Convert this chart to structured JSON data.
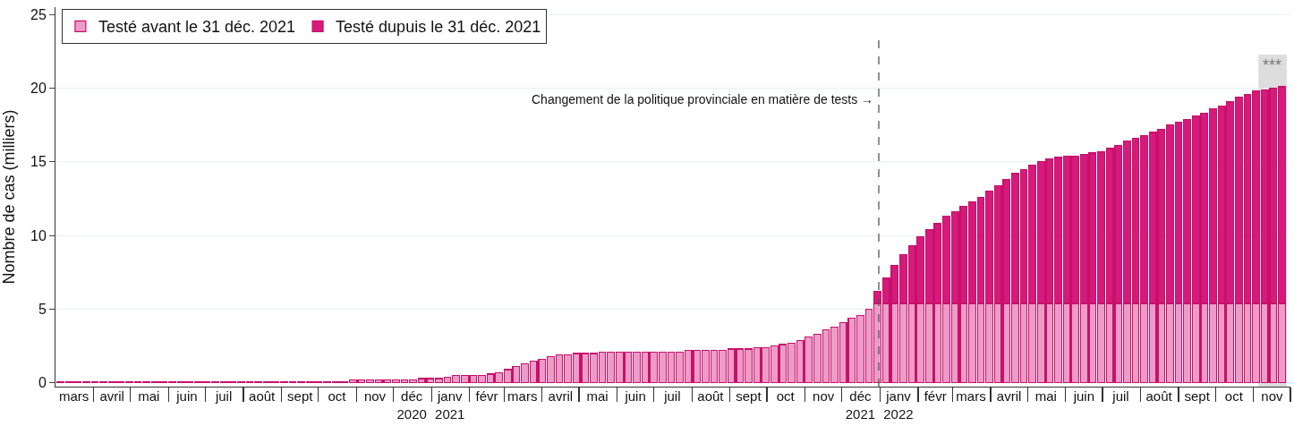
{
  "chart_data": {
    "type": "bar",
    "stacked": true,
    "ylabel": "Nombre de cas (milliers)",
    "x": [
      "2020-03-05",
      "2020-03-12",
      "2020-03-19",
      "2020-03-26",
      "2020-04-02",
      "2020-04-09",
      "2020-04-16",
      "2020-04-23",
      "2020-04-30",
      "2020-05-07",
      "2020-05-14",
      "2020-05-21",
      "2020-05-28",
      "2020-06-04",
      "2020-06-11",
      "2020-06-18",
      "2020-06-25",
      "2020-07-02",
      "2020-07-09",
      "2020-07-16",
      "2020-07-23",
      "2020-07-30",
      "2020-08-06",
      "2020-08-13",
      "2020-08-20",
      "2020-08-27",
      "2020-09-03",
      "2020-09-10",
      "2020-09-17",
      "2020-09-24",
      "2020-10-01",
      "2020-10-08",
      "2020-10-15",
      "2020-10-22",
      "2020-10-29",
      "2020-11-05",
      "2020-11-12",
      "2020-11-19",
      "2020-11-26",
      "2020-12-03",
      "2020-12-10",
      "2020-12-17",
      "2020-12-24",
      "2020-12-31",
      "2021-01-07",
      "2021-01-14",
      "2021-01-21",
      "2021-01-28",
      "2021-02-04",
      "2021-02-11",
      "2021-02-18",
      "2021-02-25",
      "2021-03-04",
      "2021-03-11",
      "2021-03-18",
      "2021-03-25",
      "2021-04-01",
      "2021-04-08",
      "2021-04-15",
      "2021-04-22",
      "2021-04-29",
      "2021-05-06",
      "2021-05-13",
      "2021-05-20",
      "2021-05-27",
      "2021-06-03",
      "2021-06-10",
      "2021-06-17",
      "2021-06-24",
      "2021-07-01",
      "2021-07-08",
      "2021-07-15",
      "2021-07-22",
      "2021-07-29",
      "2021-08-05",
      "2021-08-12",
      "2021-08-19",
      "2021-08-26",
      "2021-09-02",
      "2021-09-09",
      "2021-09-16",
      "2021-09-23",
      "2021-09-30",
      "2021-10-07",
      "2021-10-14",
      "2021-10-21",
      "2021-10-28",
      "2021-11-04",
      "2021-11-11",
      "2021-11-18",
      "2021-11-25",
      "2021-12-02",
      "2021-12-09",
      "2021-12-16",
      "2021-12-23",
      "2021-12-30",
      "2022-01-06",
      "2022-01-13",
      "2022-01-20",
      "2022-01-27",
      "2022-02-03",
      "2022-02-10",
      "2022-02-17",
      "2022-02-24",
      "2022-03-03",
      "2022-03-10",
      "2022-03-17",
      "2022-03-24",
      "2022-03-31",
      "2022-04-07",
      "2022-04-14",
      "2022-04-21",
      "2022-04-28",
      "2022-05-05",
      "2022-05-12",
      "2022-05-19",
      "2022-05-26",
      "2022-06-02",
      "2022-06-09",
      "2022-06-16",
      "2022-06-23",
      "2022-06-30",
      "2022-07-07",
      "2022-07-14",
      "2022-07-21",
      "2022-07-28",
      "2022-08-04",
      "2022-08-11",
      "2022-08-18",
      "2022-08-25",
      "2022-09-01",
      "2022-09-08",
      "2022-09-15",
      "2022-09-22",
      "2022-09-29",
      "2022-10-06",
      "2022-10-13",
      "2022-10-20",
      "2022-10-27",
      "2022-11-03",
      "2022-11-10",
      "2022-11-17",
      "2022-11-24"
    ],
    "series": [
      {
        "name": "Testé avant le 31 déc. 2021",
        "color": "#ec9cc7",
        "values": [
          0.1,
          0.1,
          0.1,
          0.1,
          0.1,
          0.1,
          0.1,
          0.1,
          0.1,
          0.1,
          0.1,
          0.1,
          0.1,
          0.1,
          0.1,
          0.1,
          0.1,
          0.1,
          0.1,
          0.1,
          0.1,
          0.1,
          0.1,
          0.1,
          0.1,
          0.1,
          0.1,
          0.1,
          0.1,
          0.1,
          0.1,
          0.1,
          0.1,
          0.1,
          0.2,
          0.2,
          0.2,
          0.2,
          0.2,
          0.2,
          0.2,
          0.2,
          0.3,
          0.3,
          0.3,
          0.4,
          0.5,
          0.5,
          0.5,
          0.5,
          0.6,
          0.7,
          0.9,
          1.1,
          1.3,
          1.5,
          1.6,
          1.8,
          1.9,
          1.9,
          2.0,
          2.0,
          2.0,
          2.1,
          2.1,
          2.1,
          2.1,
          2.1,
          2.1,
          2.1,
          2.1,
          2.1,
          2.1,
          2.2,
          2.2,
          2.2,
          2.2,
          2.2,
          2.3,
          2.3,
          2.3,
          2.4,
          2.4,
          2.5,
          2.6,
          2.7,
          2.9,
          3.1,
          3.3,
          3.6,
          3.8,
          4.1,
          4.4,
          4.6,
          5.0,
          5.4,
          5.4,
          5.4,
          5.4,
          5.4,
          5.4,
          5.4,
          5.4,
          5.4,
          5.4,
          5.4,
          5.4,
          5.4,
          5.4,
          5.4,
          5.4,
          5.4,
          5.4,
          5.4,
          5.4,
          5.4,
          5.4,
          5.4,
          5.4,
          5.4,
          5.4,
          5.4,
          5.4,
          5.4,
          5.4,
          5.4,
          5.4,
          5.4,
          5.4,
          5.4,
          5.4,
          5.4,
          5.4,
          5.4,
          5.4,
          5.4,
          5.4,
          5.4,
          5.4,
          5.4,
          5.4,
          5.4,
          5.4
        ]
      },
      {
        "name": "Testé dupuis le 31 déc. 2021",
        "color": "#d51a7b",
        "values": [
          null,
          null,
          null,
          null,
          null,
          null,
          null,
          null,
          null,
          null,
          null,
          null,
          null,
          null,
          null,
          null,
          null,
          null,
          null,
          null,
          null,
          null,
          null,
          null,
          null,
          null,
          null,
          null,
          null,
          null,
          null,
          null,
          null,
          null,
          null,
          null,
          null,
          null,
          null,
          null,
          null,
          null,
          null,
          null,
          null,
          null,
          null,
          null,
          null,
          null,
          null,
          null,
          null,
          null,
          null,
          null,
          null,
          null,
          null,
          null,
          null,
          null,
          null,
          null,
          null,
          null,
          null,
          null,
          null,
          null,
          null,
          null,
          null,
          null,
          null,
          null,
          null,
          null,
          null,
          null,
          null,
          null,
          null,
          null,
          null,
          null,
          null,
          null,
          null,
          null,
          null,
          null,
          null,
          null,
          null,
          0.8,
          1.7,
          2.6,
          3.3,
          3.9,
          4.5,
          5.0,
          5.4,
          5.9,
          6.2,
          6.6,
          6.9,
          7.2,
          7.6,
          8.0,
          8.4,
          8.8,
          9.1,
          9.4,
          9.6,
          9.8,
          9.9,
          10.0,
          10.0,
          10.1,
          10.2,
          10.3,
          10.5,
          10.7,
          11.0,
          11.2,
          11.4,
          11.6,
          11.8,
          12.1,
          12.3,
          12.5,
          12.7,
          12.9,
          13.2,
          13.4,
          13.7,
          14.0,
          14.2,
          14.4,
          14.5,
          14.6,
          14.7
        ]
      }
    ],
    "xlim": [
      "2020-03-01",
      "2022-12-01"
    ],
    "xticks": [
      {
        "value": "2020-03-16",
        "label": "mars"
      },
      {
        "value": "2020-04-01",
        "label": null
      },
      {
        "value": "2020-04-16",
        "label": "avril"
      },
      {
        "value": "2020-05-01",
        "label": null
      },
      {
        "value": "2020-05-16",
        "label": "mai"
      },
      {
        "value": "2020-06-01",
        "label": null
      },
      {
        "value": "2020-06-16",
        "label": "juin"
      },
      {
        "value": "2020-07-01",
        "label": null
      },
      {
        "value": "2020-07-16",
        "label": "juil"
      },
      {
        "value": "2020-08-01",
        "label": null
      },
      {
        "value": "2020-08-16",
        "label": "août"
      },
      {
        "value": "2020-09-01",
        "label": null
      },
      {
        "value": "2020-09-16",
        "label": "sept"
      },
      {
        "value": "2020-10-01",
        "label": null
      },
      {
        "value": "2020-10-16",
        "label": "oct"
      },
      {
        "value": "2020-11-01",
        "label": null
      },
      {
        "value": "2020-11-16",
        "label": "nov"
      },
      {
        "value": "2020-12-01",
        "label": null
      },
      {
        "value": "2020-12-16",
        "label": "déc\n2020"
      },
      {
        "value": "2021-01-01",
        "label": null
      },
      {
        "value": "2021-01-16",
        "label": "janv\n2021"
      },
      {
        "value": "2021-02-01",
        "label": null
      },
      {
        "value": "2021-02-15",
        "label": "févr"
      },
      {
        "value": "2021-03-01",
        "label": null
      },
      {
        "value": "2021-03-16",
        "label": "mars"
      },
      {
        "value": "2021-04-01",
        "label": null
      },
      {
        "value": "2021-04-16",
        "label": "avril"
      },
      {
        "value": "2021-05-01",
        "label": null
      },
      {
        "value": "2021-05-16",
        "label": "mai"
      },
      {
        "value": "2021-06-01",
        "label": null
      },
      {
        "value": "2021-06-16",
        "label": "juin"
      },
      {
        "value": "2021-07-01",
        "label": null
      },
      {
        "value": "2021-07-16",
        "label": "juil"
      },
      {
        "value": "2021-08-01",
        "label": null
      },
      {
        "value": "2021-08-16",
        "label": "août"
      },
      {
        "value": "2021-09-01",
        "label": null
      },
      {
        "value": "2021-09-16",
        "label": "sept"
      },
      {
        "value": "2021-10-01",
        "label": null
      },
      {
        "value": "2021-10-16",
        "label": "oct"
      },
      {
        "value": "2021-11-01",
        "label": null
      },
      {
        "value": "2021-11-16",
        "label": "nov"
      },
      {
        "value": "2021-12-01",
        "label": null
      },
      {
        "value": "2021-12-16",
        "label": "déc\n2021"
      },
      {
        "value": "2022-01-01",
        "label": null
      },
      {
        "value": "2022-01-16",
        "label": "janv\n2022"
      },
      {
        "value": "2022-02-01",
        "label": null
      },
      {
        "value": "2022-02-15",
        "label": "févr"
      },
      {
        "value": "2022-03-01",
        "label": null
      },
      {
        "value": "2022-03-16",
        "label": "mars"
      },
      {
        "value": "2022-04-01",
        "label": null
      },
      {
        "value": "2022-04-16",
        "label": "avril"
      },
      {
        "value": "2022-05-01",
        "label": null
      },
      {
        "value": "2022-05-16",
        "label": "mai"
      },
      {
        "value": "2022-06-01",
        "label": null
      },
      {
        "value": "2022-06-16",
        "label": "juin"
      },
      {
        "value": "2022-07-01",
        "label": null
      },
      {
        "value": "2022-07-16",
        "label": "juil"
      },
      {
        "value": "2022-08-01",
        "label": null
      },
      {
        "value": "2022-08-16",
        "label": "août"
      },
      {
        "value": "2022-09-01",
        "label": null
      },
      {
        "value": "2022-09-16",
        "label": "sept"
      },
      {
        "value": "2022-10-01",
        "label": null
      },
      {
        "value": "2022-10-16",
        "label": "oct"
      },
      {
        "value": "2022-11-01",
        "label": null
      },
      {
        "value": "2022-11-16",
        "label": "nov"
      },
      {
        "value": "2022-12-01",
        "label": null
      }
    ],
    "ylim": [
      -0.25,
      25.5
    ],
    "yticks": [
      0,
      5,
      10,
      15,
      20,
      25
    ],
    "grid": "y",
    "legend": "top left",
    "ref_lines": [
      {
        "axis": "x",
        "value": "2021-12-31",
        "label": "Changement de la politique provinciale en matière de tests →",
        "color": "#555555",
        "line_style": "dashed"
      }
    ],
    "bands": [
      {
        "axis": "x",
        "from": "2022-11-05",
        "to": "2022-11-28",
        "label": "***",
        "color": "#dddddd"
      }
    ]
  }
}
